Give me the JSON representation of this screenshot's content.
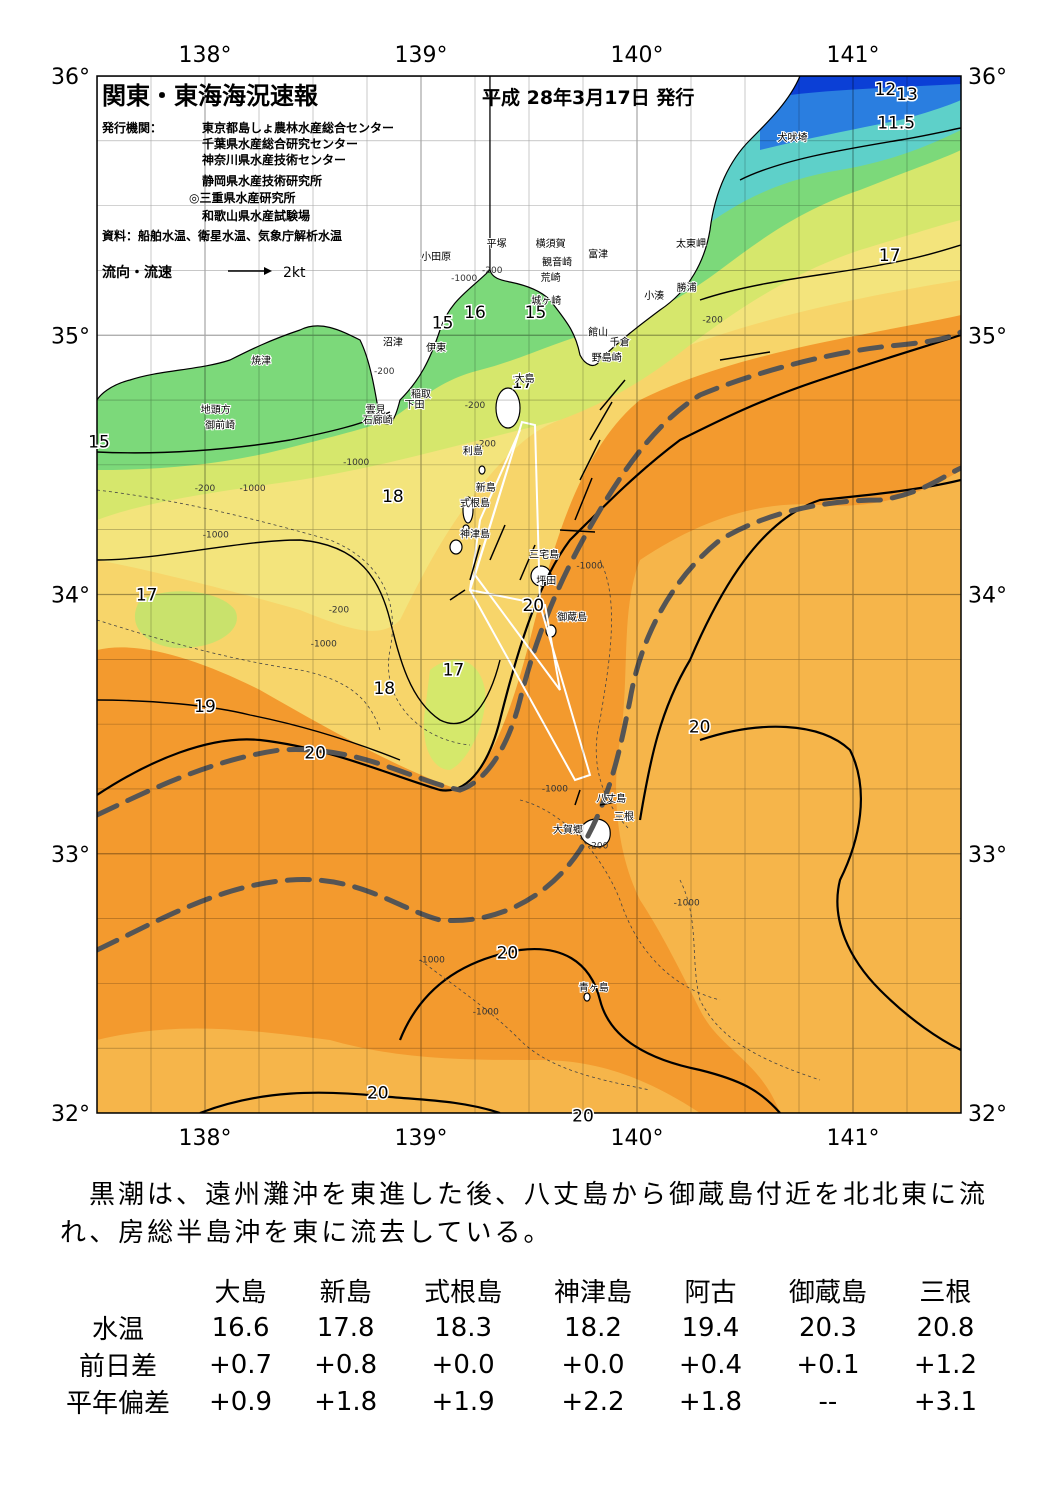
{
  "map": {
    "title": "関東・東海海況速報",
    "issue_date": "平成 28年3月17日 発行",
    "issuer_label": "発行機関：",
    "issuers": [
      "東京都島しょ農林水産総合センター",
      "千葉県水産総合研究センター",
      "神奈川県水産技術センター",
      "静岡県水産技術研究所",
      "◎三重県水産研究所",
      "和歌山県水産試験場"
    ],
    "source": "資料：船舶水温、衛星水温、気象庁解析水温",
    "flow_legend_label": "流向・流速",
    "flow_legend_unit": "2kt",
    "lon_ticks": [
      "138°",
      "139°",
      "140°",
      "141°"
    ],
    "lat_ticks": [
      "36°",
      "35°",
      "34°",
      "33°",
      "32°"
    ],
    "lon_range": [
      137.5,
      141.5
    ],
    "lat_range": [
      32,
      36
    ],
    "isotherm_labels": [
      {
        "text": "12",
        "lon": 141.15,
        "lat": 35.95
      },
      {
        "text": "13",
        "lon": 141.25,
        "lat": 35.93
      },
      {
        "text": "11.5",
        "lon": 141.2,
        "lat": 35.82
      },
      {
        "text": "17",
        "lon": 141.17,
        "lat": 35.31
      },
      {
        "text": "15",
        "lon": 137.5,
        "lat": 34.59
      },
      {
        "text": "15",
        "lon": 139.1,
        "lat": 35.05
      },
      {
        "text": "16",
        "lon": 139.25,
        "lat": 35.09
      },
      {
        "text": "15",
        "lon": 139.53,
        "lat": 35.09
      },
      {
        "text": "17",
        "lon": 139.47,
        "lat": 34.82
      },
      {
        "text": "18",
        "lon": 138.87,
        "lat": 34.38
      },
      {
        "text": "17",
        "lon": 137.73,
        "lat": 34.0
      },
      {
        "text": "20",
        "lon": 139.52,
        "lat": 33.96
      },
      {
        "text": "17",
        "lon": 139.15,
        "lat": 33.71
      },
      {
        "text": "18",
        "lon": 138.83,
        "lat": 33.64
      },
      {
        "text": "19",
        "lon": 138.0,
        "lat": 33.57
      },
      {
        "text": "20",
        "lon": 138.51,
        "lat": 33.39
      },
      {
        "text": "20",
        "lon": 140.29,
        "lat": 33.49
      },
      {
        "text": "20",
        "lon": 139.4,
        "lat": 32.62
      },
      {
        "text": "20",
        "lon": 138.8,
        "lat": 32.08
      },
      {
        "text": "20",
        "lon": 139.75,
        "lat": 31.99
      }
    ],
    "depth_labels": [
      {
        "text": "-200",
        "lon": 139.33,
        "lat": 35.24
      },
      {
        "text": "-1000",
        "lon": 139.2,
        "lat": 35.21
      },
      {
        "text": "-200",
        "lon": 138.83,
        "lat": 34.85
      },
      {
        "text": "-200",
        "lon": 139.25,
        "lat": 34.72
      },
      {
        "text": "-200",
        "lon": 139.3,
        "lat": 34.57
      },
      {
        "text": "-1000",
        "lon": 138.7,
        "lat": 34.5
      },
      {
        "text": "-200",
        "lon": 138.0,
        "lat": 34.4
      },
      {
        "text": "-1000",
        "lon": 138.22,
        "lat": 34.4
      },
      {
        "text": "-1000",
        "lon": 138.05,
        "lat": 34.22
      },
      {
        "text": "-200",
        "lon": 138.62,
        "lat": 33.93
      },
      {
        "text": "-1000",
        "lon": 138.55,
        "lat": 33.8
      },
      {
        "text": "-1000",
        "lon": 139.78,
        "lat": 34.1
      },
      {
        "text": "-1000",
        "lon": 139.62,
        "lat": 33.24
      },
      {
        "text": "-200",
        "lon": 139.82,
        "lat": 33.02
      },
      {
        "text": "-1000",
        "lon": 140.23,
        "lat": 32.8
      },
      {
        "text": "-1000",
        "lon": 139.05,
        "lat": 32.58
      },
      {
        "text": "-1000",
        "lon": 139.3,
        "lat": 32.38
      },
      {
        "text": "-200",
        "lon": 140.35,
        "lat": 35.05
      }
    ],
    "place_labels": [
      {
        "text": "犬吠埼",
        "lon": 140.72,
        "lat": 35.75
      },
      {
        "text": "太東岬",
        "lon": 140.25,
        "lat": 35.34
      },
      {
        "text": "勝浦",
        "lon": 140.23,
        "lat": 35.17
      },
      {
        "text": "小湊",
        "lon": 140.08,
        "lat": 35.14
      },
      {
        "text": "富津",
        "lon": 139.82,
        "lat": 35.3
      },
      {
        "text": "横須賀",
        "lon": 139.6,
        "lat": 35.34
      },
      {
        "text": "観音崎",
        "lon": 139.63,
        "lat": 35.27
      },
      {
        "text": "荒崎",
        "lon": 139.6,
        "lat": 35.21
      },
      {
        "text": "城ヶ崎",
        "lon": 139.58,
        "lat": 35.12
      },
      {
        "text": "平塚",
        "lon": 139.35,
        "lat": 35.34
      },
      {
        "text": "小田原",
        "lon": 139.07,
        "lat": 35.29
      },
      {
        "text": "館山",
        "lon": 139.82,
        "lat": 35.0
      },
      {
        "text": "千倉",
        "lon": 139.92,
        "lat": 34.96
      },
      {
        "text": "野島崎",
        "lon": 139.86,
        "lat": 34.9
      },
      {
        "text": "沼津",
        "lon": 138.87,
        "lat": 34.96
      },
      {
        "text": "伊東",
        "lon": 139.07,
        "lat": 34.94
      },
      {
        "text": "焼津",
        "lon": 138.26,
        "lat": 34.89
      },
      {
        "text": "稲取",
        "lon": 139.0,
        "lat": 34.76
      },
      {
        "text": "下田",
        "lon": 138.97,
        "lat": 34.72
      },
      {
        "text": "雲見",
        "lon": 138.79,
        "lat": 34.7
      },
      {
        "text": "石廊崎",
        "lon": 138.8,
        "lat": 34.66
      },
      {
        "text": "地頭方",
        "lon": 138.05,
        "lat": 34.7
      },
      {
        "text": "御前崎",
        "lon": 138.07,
        "lat": 34.64
      },
      {
        "text": "大島",
        "lon": 139.48,
        "lat": 34.82
      },
      {
        "text": "利島",
        "lon": 139.24,
        "lat": 34.54
      },
      {
        "text": "新島",
        "lon": 139.3,
        "lat": 34.4
      },
      {
        "text": "式根島",
        "lon": 139.25,
        "lat": 34.34
      },
      {
        "text": "神津島",
        "lon": 139.25,
        "lat": 34.22
      },
      {
        "text": "三宅島",
        "lon": 139.57,
        "lat": 34.14
      },
      {
        "text": "坪田",
        "lon": 139.58,
        "lat": 34.04
      },
      {
        "text": "御蔵島",
        "lon": 139.7,
        "lat": 33.9
      },
      {
        "text": "八丈島",
        "lon": 139.88,
        "lat": 33.2
      },
      {
        "text": "三根",
        "lon": 139.94,
        "lat": 33.13
      },
      {
        "text": "大賀郷",
        "lon": 139.68,
        "lat": 33.08
      },
      {
        "text": "青ヶ島",
        "lon": 139.8,
        "lat": 32.47
      }
    ]
  },
  "summary": "　黒潮は、遠州灘沖を東進した後、八丈島から御蔵島付近を北北東に流れ、房総半島沖を東に流去している。",
  "stats": {
    "columns": [
      "大島",
      "新島",
      "式根島",
      "神津島",
      "阿古",
      "御蔵島",
      "三根"
    ],
    "rows": [
      {
        "label": "水温",
        "values": [
          "16.6",
          "17.8",
          "18.3",
          "18.2",
          "19.4",
          "20.3",
          "20.8"
        ]
      },
      {
        "label": "前日差",
        "values": [
          "+0.7",
          "+0.8",
          "+0.0",
          "+0.0",
          "+0.4",
          "+0.1",
          "+1.2"
        ]
      },
      {
        "label": "平年偏差",
        "values": [
          "+0.9",
          "+1.8",
          "+1.9",
          "+2.2",
          "+1.8",
          "--",
          "+3.1"
        ]
      }
    ]
  },
  "colors": {
    "warm": "#f39a2e",
    "orange_light": "#f7b84a",
    "yellow": "#f7d56a",
    "yellow_light": "#f3e37a",
    "yellow_green": "#d8e86a",
    "green": "#7cd97a",
    "cyan": "#5fd3c8",
    "blue": "#2a7ee0",
    "deep_blue": "#0b3fd6",
    "kuroshio_axis": "#555555"
  }
}
